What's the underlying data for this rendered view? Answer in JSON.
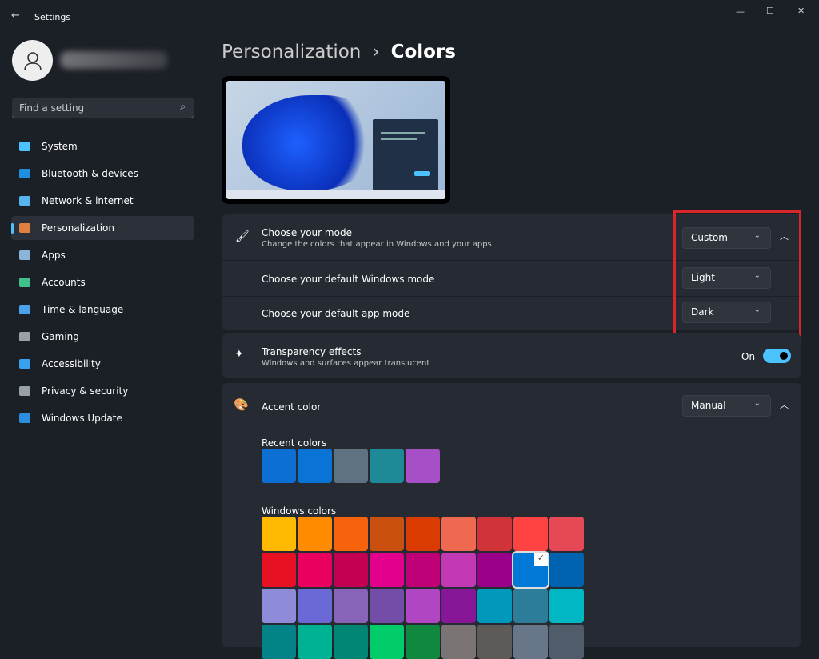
{
  "window": {
    "title": "Settings",
    "back": "←",
    "minimize": "—",
    "maximize": "☐",
    "close": "✕"
  },
  "search": {
    "placeholder": "Find a setting"
  },
  "sidebar": {
    "items": [
      {
        "label": "System",
        "color": "#4cc2ff"
      },
      {
        "label": "Bluetooth & devices",
        "color": "#1e8fe0"
      },
      {
        "label": "Network & internet",
        "color": "#58b4f0"
      },
      {
        "label": "Personalization",
        "color": "#e08040",
        "active": true
      },
      {
        "label": "Apps",
        "color": "#8ab4d8"
      },
      {
        "label": "Accounts",
        "color": "#3fc28a"
      },
      {
        "label": "Time & language",
        "color": "#4aa3e8"
      },
      {
        "label": "Gaming",
        "color": "#9aa0a8"
      },
      {
        "label": "Accessibility",
        "color": "#3aa0f0"
      },
      {
        "label": "Privacy & security",
        "color": "#9aa0a8"
      },
      {
        "label": "Windows Update",
        "color": "#2a8de0"
      }
    ]
  },
  "breadcrumb": {
    "parent": "Personalization",
    "sep": "›",
    "current": "Colors"
  },
  "mode": {
    "title": "Choose your mode",
    "subtitle": "Change the colors that appear in Windows and your apps",
    "value": "Custom",
    "windows_label": "Choose your default Windows mode",
    "windows_value": "Light",
    "app_label": "Choose your default app mode",
    "app_value": "Dark"
  },
  "transparency": {
    "title": "Transparency effects",
    "subtitle": "Windows and surfaces appear translucent",
    "state": "On",
    "on": true
  },
  "accent": {
    "title": "Accent color",
    "value": "Manual",
    "recent_label": "Recent colors",
    "windows_label": "Windows colors",
    "recent": [
      "#0b6fd4",
      "#0a74d6",
      "#5e7282",
      "#1e8a97",
      "#a64fc7"
    ],
    "colors": [
      [
        "#ffb900",
        "#ff8c00",
        "#f7630c",
        "#ca5010",
        "#da3b01",
        "#ef6950",
        "#d13438",
        "#ff4343",
        "#e74856"
      ],
      [
        "#e81123",
        "#ea005e",
        "#c30052",
        "#e3008c",
        "#bf0077",
        "#c239b3",
        "#9a0089",
        "#0078d7",
        "#0063b1"
      ],
      [
        "#8e8cd8",
        "#6b69d6",
        "#8764b8",
        "#744da9",
        "#b146c2",
        "#881798",
        "#0099bc",
        "#2d7d9a",
        "#00b7c3"
      ],
      [
        "#038387",
        "#00b294",
        "#018574",
        "#00cc6a",
        "#10893e",
        "#7a7574",
        "#5d5a58",
        "#68768a",
        "#515c6b"
      ]
    ],
    "selected": "#0078d7"
  },
  "highlight_color": "#d8262b"
}
